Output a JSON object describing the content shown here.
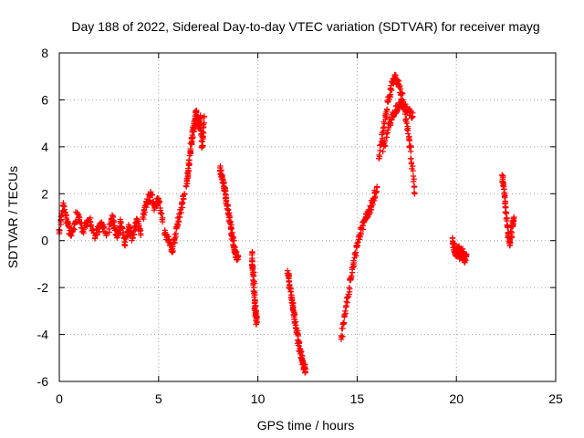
{
  "chart_data": {
    "type": "scatter",
    "title": "Day 188 of 2022, Sidereal Day-to-day VTEC variation (SDTVAR) for receiver mayg",
    "xlabel": "GPS time / hours",
    "ylabel": "SDTVAR / TECUs",
    "xlim": [
      0,
      25
    ],
    "ylim": [
      -6,
      8
    ],
    "xticks": [
      0,
      5,
      10,
      15,
      20,
      25
    ],
    "yticks": [
      -6,
      -4,
      -2,
      0,
      2,
      4,
      6,
      8
    ],
    "grid": true,
    "marker": "+",
    "color": "#ff0000",
    "series": [
      {
        "name": "SDTVAR",
        "segments": [
          {
            "x": [
              0.0,
              0.2,
              0.4,
              0.6,
              0.9,
              1.2,
              1.5,
              1.8,
              2.1,
              2.4
            ],
            "y": [
              0.3,
              1.5,
              0.8,
              0.2,
              1.2,
              0.4,
              0.9,
              0.2,
              0.7,
              0.3
            ]
          },
          {
            "x": [
              2.5,
              2.7,
              2.9,
              3.1,
              3.3,
              3.5,
              3.7,
              3.9,
              4.1
            ],
            "y": [
              0.5,
              1.0,
              0.2,
              0.8,
              -0.2,
              0.6,
              0.1,
              0.9,
              0.3
            ]
          },
          {
            "x": [
              4.2,
              4.4,
              4.6,
              4.8,
              5.0,
              5.2
            ],
            "y": [
              1.0,
              1.6,
              2.0,
              1.4,
              1.8,
              0.8
            ]
          },
          {
            "x": [
              5.3,
              5.5,
              5.7,
              5.9,
              6.1,
              6.3
            ],
            "y": [
              0.3,
              0.0,
              -0.5,
              0.6,
              1.2,
              2.0
            ]
          },
          {
            "x": [
              6.4,
              6.5,
              6.6,
              6.7,
              6.8,
              6.9,
              7.0,
              7.1,
              7.2,
              7.3
            ],
            "y": [
              2.3,
              3.0,
              3.8,
              4.5,
              5.0,
              5.5,
              4.8,
              5.2,
              4.0,
              5.3
            ]
          },
          {
            "x": [
              8.1,
              8.2,
              8.3,
              8.4,
              8.5,
              8.6,
              8.7,
              8.8,
              8.9,
              9.0
            ],
            "y": [
              3.1,
              2.7,
              2.3,
              1.8,
              1.3,
              0.8,
              0.2,
              -0.3,
              -0.6,
              -0.8
            ]
          },
          {
            "x": [
              9.7,
              9.75,
              9.8,
              9.85,
              9.9,
              9.95
            ],
            "y": [
              -0.6,
              -1.2,
              -2.0,
              -2.8,
              -3.2,
              -3.5
            ]
          },
          {
            "x": [
              11.5,
              11.6,
              11.7,
              11.8,
              11.9,
              12.0,
              12.1,
              12.2,
              12.3,
              12.4
            ],
            "y": [
              -1.4,
              -1.9,
              -2.5,
              -3.0,
              -3.6,
              -4.0,
              -4.6,
              -5.0,
              -5.3,
              -5.6
            ]
          },
          {
            "x": [
              14.2,
              14.4,
              14.6,
              14.8,
              15.0,
              15.2,
              15.4,
              15.6,
              15.8,
              16.0
            ],
            "y": [
              -4.2,
              -3.0,
              -2.0,
              -1.0,
              -0.2,
              0.5,
              0.9,
              1.2,
              1.7,
              2.3
            ]
          },
          {
            "x": [
              16.1,
              16.3,
              16.5,
              16.7,
              16.9,
              17.1,
              17.3,
              17.5,
              17.7,
              17.9
            ],
            "y": [
              3.5,
              4.6,
              5.6,
              6.5,
              7.0,
              6.6,
              6.0,
              5.0,
              3.8,
              2.0
            ]
          },
          {
            "x": [
              16.3,
              16.6,
              16.9,
              17.2,
              17.5,
              17.8
            ],
            "y": [
              3.8,
              5.0,
              5.5,
              5.8,
              5.6,
              5.3
            ]
          },
          {
            "x": [
              19.8,
              19.9,
              20.0,
              20.1,
              20.2,
              20.3,
              20.4,
              20.5
            ],
            "y": [
              0.1,
              -0.4,
              -0.6,
              -0.3,
              -0.7,
              -0.5,
              -0.8,
              -0.6
            ]
          },
          {
            "x": [
              22.3,
              22.4,
              22.5,
              22.6,
              22.7,
              22.8,
              22.9
            ],
            "y": [
              2.8,
              2.2,
              1.2,
              0.3,
              -0.2,
              0.6,
              1.0
            ]
          }
        ]
      }
    ]
  }
}
